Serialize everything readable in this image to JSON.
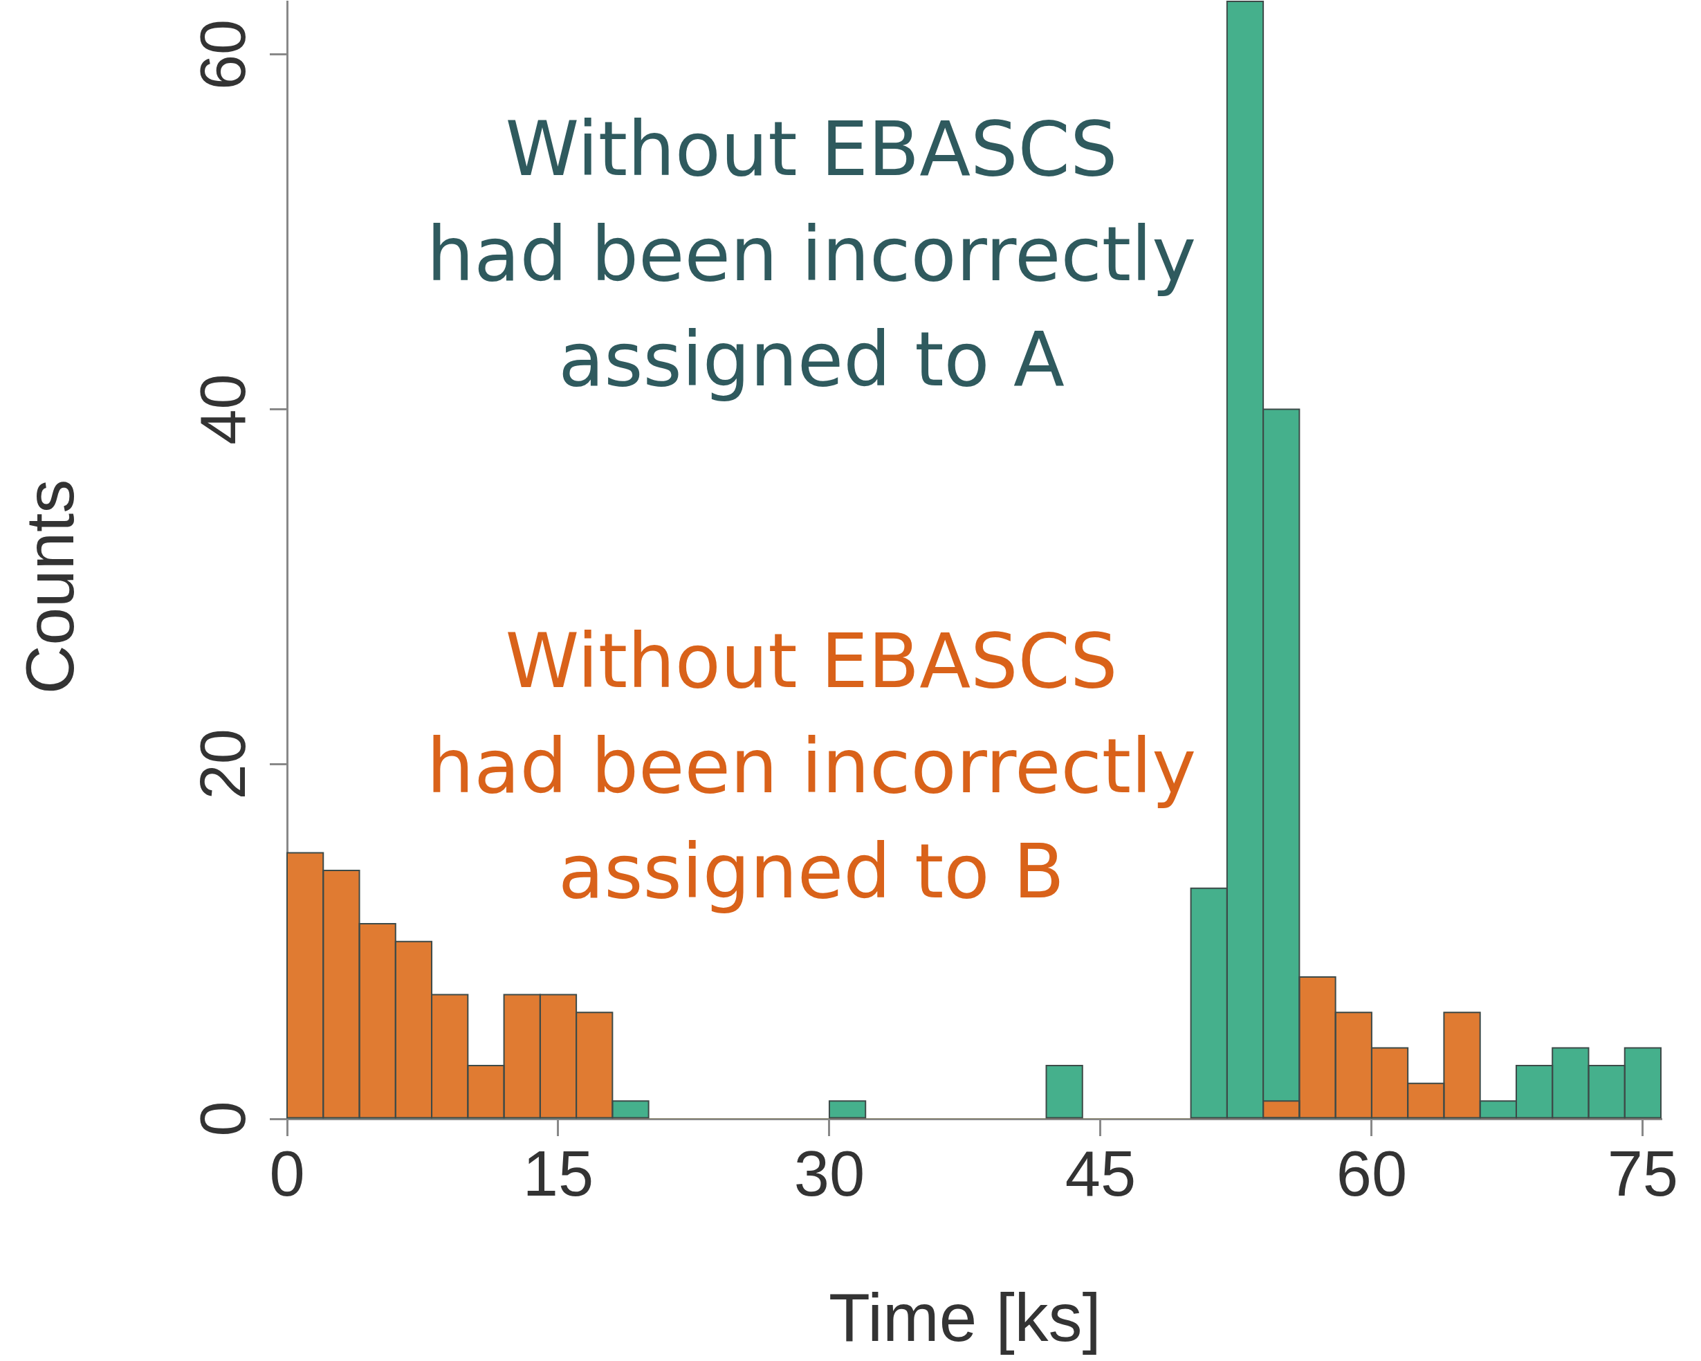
{
  "chart_data": {
    "type": "histogram",
    "xlabel": "Time [ks]",
    "ylabel": "Counts",
    "annotations": [
      "Without EBASCS\nhad been incorrectly\nassigned to A",
      "Without EBASCS\nhad been incorrectly\nassigned to B"
    ],
    "bins": [
      0,
      2,
      4,
      6,
      8,
      10,
      12,
      14,
      16,
      18,
      20,
      22,
      24,
      26,
      28,
      30,
      32,
      34,
      36,
      38,
      40,
      42,
      44,
      46,
      48,
      50,
      52,
      54,
      56,
      58,
      60,
      62,
      64,
      66,
      68,
      70,
      72,
      74,
      76
    ],
    "series": [
      {
        "color": "#e07b32",
        "values": [
          15,
          14,
          11,
          10,
          7,
          3,
          7,
          7,
          6,
          0,
          0,
          0,
          0,
          0,
          0,
          0,
          0,
          0,
          0,
          0,
          0,
          0,
          0,
          0,
          0,
          0,
          0,
          1,
          8,
          6,
          4,
          2,
          6,
          0,
          0,
          0,
          0,
          0
        ]
      },
      {
        "color": "#45b08c",
        "values": [
          0,
          0,
          0,
          0,
          0,
          0,
          0,
          0,
          0,
          1,
          0,
          0,
          0,
          0,
          0,
          1,
          0,
          0,
          0,
          0,
          0,
          3,
          0,
          0,
          0,
          13,
          63,
          40,
          0,
          0,
          0,
          0,
          0,
          1,
          3,
          4,
          3,
          4
        ]
      }
    ],
    "xlim": [
      0,
      76
    ],
    "ylim": [
      0,
      63
    ],
    "xticks": [
      0,
      15,
      30,
      45,
      60,
      75
    ],
    "yticks": [
      0,
      20,
      40,
      60
    ]
  }
}
